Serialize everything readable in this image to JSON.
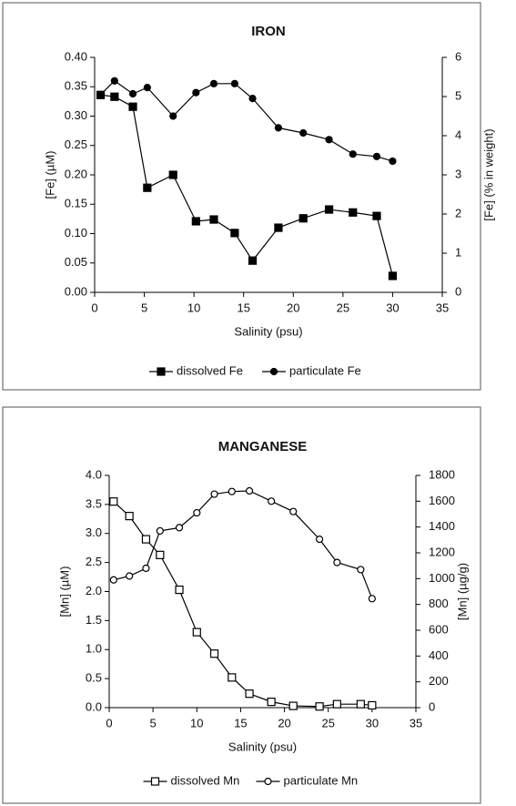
{
  "chart_data": [
    {
      "type": "line",
      "title": "IRON",
      "x_label": "Salinity (psu)",
      "y_label": "[Fe] (µM)",
      "y2_label": "[Fe] (% in weight)",
      "xlim": [
        0,
        35
      ],
      "xticks": [
        0,
        5,
        10,
        15,
        20,
        25,
        30,
        35
      ],
      "ylim": [
        0,
        0.4
      ],
      "yticks": [
        {
          "value": 0,
          "label": "0.00"
        },
        {
          "value": 0.05,
          "label": "0.05"
        },
        {
          "value": 0.1,
          "label": "0.10"
        },
        {
          "value": 0.15,
          "label": "0.15"
        },
        {
          "value": 0.2,
          "label": "0.20"
        },
        {
          "value": 0.25,
          "label": "0.25"
        },
        {
          "value": 0.3,
          "label": "0.30"
        },
        {
          "value": 0.35,
          "label": "0.35"
        },
        {
          "value": 0.4,
          "label": "0.40"
        }
      ],
      "y2lim": [
        0,
        6
      ],
      "y2ticks": [
        0,
        1,
        2,
        3,
        4,
        5,
        6
      ],
      "legend": "bottom",
      "series": [
        {
          "name": "dissolved Fe",
          "color": "#000000",
          "marker": "square",
          "filled": true,
          "x": [
            0.6,
            2.0,
            3.85,
            5.3,
            7.9,
            10.2,
            12.0,
            14.1,
            15.9,
            18.5,
            21.0,
            23.6,
            26.0,
            28.4,
            30.0
          ],
          "values": [
            0.336,
            0.333,
            0.316,
            0.178,
            0.2,
            0.121,
            0.124,
            0.101,
            0.054,
            0.11,
            0.126,
            0.141,
            0.136,
            0.13,
            0.028
          ]
        },
        {
          "name": "particulate Fe",
          "color": "#000000",
          "marker": "circle",
          "filled": true,
          "axis": "y2",
          "x": [
            0.6,
            2.0,
            3.85,
            5.3,
            7.9,
            10.2,
            12.0,
            14.1,
            15.9,
            18.5,
            21.0,
            23.6,
            26.0,
            28.4,
            30.0
          ],
          "values": [
            5.05,
            5.4,
            5.07,
            5.23,
            4.5,
            5.1,
            5.33,
            5.33,
            4.95,
            4.2,
            4.07,
            3.9,
            3.53,
            3.47,
            3.35
          ]
        }
      ]
    },
    {
      "type": "line",
      "title": "MANGANESE",
      "x_label": "Salinity (psu)",
      "y_label": "[Mn] (µM)",
      "y2_label": "[Mn] (µg/g)",
      "xlim": [
        0,
        35
      ],
      "xticks": [
        0,
        5,
        10,
        15,
        20,
        25,
        30,
        35
      ],
      "ylim": [
        0,
        4
      ],
      "yticks": [
        {
          "value": 0,
          "label": "0.0"
        },
        {
          "value": 0.5,
          "label": "0.5"
        },
        {
          "value": 1,
          "label": "1.0"
        },
        {
          "value": 1.5,
          "label": "1.5"
        },
        {
          "value": 2,
          "label": "2.0"
        },
        {
          "value": 2.5,
          "label": "2.5"
        },
        {
          "value": 3,
          "label": "3.0"
        },
        {
          "value": 3.5,
          "label": "3.5"
        },
        {
          "value": 4,
          "label": "4.0"
        }
      ],
      "y2lim": [
        0,
        1800
      ],
      "y2ticks": [
        0,
        200,
        400,
        600,
        800,
        1000,
        1200,
        1400,
        1600,
        1800
      ],
      "legend": "bottom",
      "series": [
        {
          "name": "dissolved Mn",
          "color": "#000000",
          "marker": "square",
          "filled": false,
          "x": [
            0.5,
            2.3,
            4.2,
            5.8,
            8.0,
            10.0,
            12.0,
            14.0,
            16.0,
            18.5,
            21.0,
            24.0,
            26.0,
            28.7,
            30.0
          ],
          "values": [
            3.55,
            3.3,
            2.9,
            2.63,
            2.03,
            1.3,
            0.93,
            0.52,
            0.24,
            0.1,
            0.03,
            0.02,
            0.06,
            0.06,
            0.04
          ]
        },
        {
          "name": "particulate Mn",
          "color": "#000000",
          "marker": "circle",
          "filled": false,
          "axis": "y2",
          "x": [
            0.5,
            2.3,
            4.2,
            5.8,
            8.0,
            10.0,
            12.0,
            14.0,
            16.0,
            18.5,
            21.0,
            24.0,
            26.0,
            28.7,
            30.0
          ],
          "values": [
            990,
            1020,
            1080,
            1370,
            1395,
            1510,
            1655,
            1675,
            1680,
            1600,
            1520,
            1305,
            1125,
            1070,
            845
          ]
        }
      ]
    }
  ]
}
